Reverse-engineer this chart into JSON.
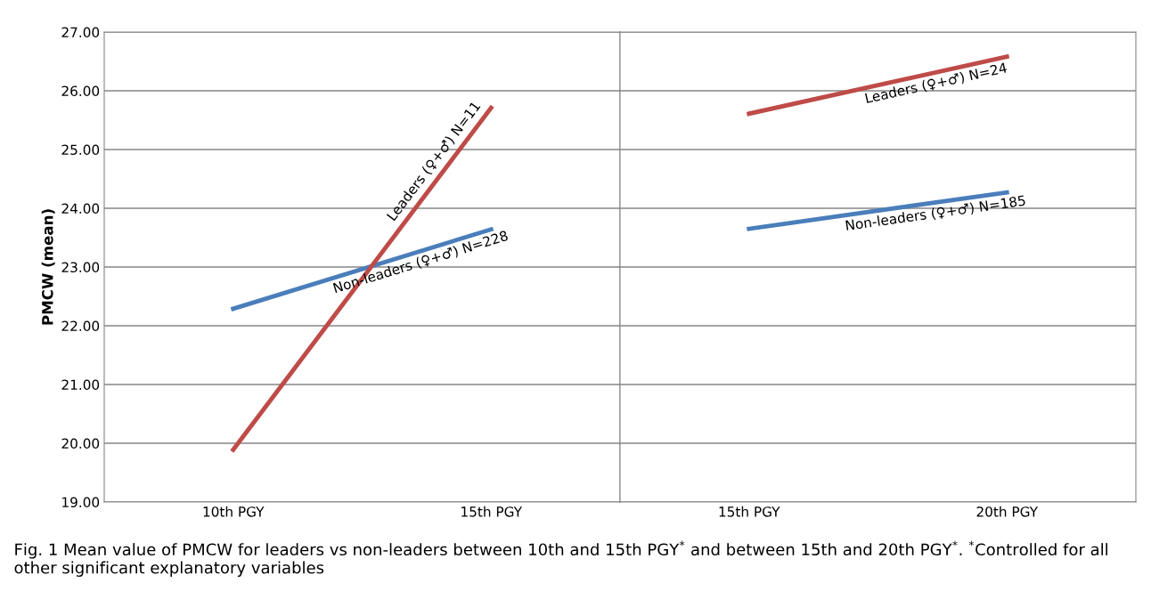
{
  "chart_data": [
    {
      "type": "line",
      "ylabel": "PMCW (mean)",
      "categories": [
        "10th PGY",
        "15th PGY"
      ],
      "series": [
        {
          "name": "Non-leaders (♀+♂) N=228",
          "color": "#4a7ebb",
          "values": [
            22.29,
            23.64
          ]
        },
        {
          "name": "Leaders (♀+♂) N=11",
          "color": "#be4b48",
          "values": [
            19.89,
            25.71
          ]
        }
      ],
      "ylim": [
        19,
        27
      ],
      "yticks": [
        {
          "value": 19,
          "label": "19.00"
        },
        {
          "value": 20,
          "label": "20.00"
        },
        {
          "value": 21,
          "label": "21.00"
        },
        {
          "value": 22,
          "label": "22.00"
        },
        {
          "value": 23,
          "label": "23.00"
        },
        {
          "value": 24,
          "label": "24.00"
        },
        {
          "value": 25,
          "label": "25.00"
        },
        {
          "value": 26,
          "label": "26.00"
        },
        {
          "value": 27,
          "label": "27.00"
        }
      ],
      "grid": "y",
      "legend": false,
      "marker": "none",
      "line_style": "solid",
      "annotations": [
        "Fig. 1 Mean value of PMCW for leaders vs non-leaders between 10th and 15th PGY$^{*}$ and between 15th and 20th PGY$^{*}$. $^{*}$Controlled for all other significant explanatory variables"
      ]
    },
    {
      "type": "line",
      "categories": [
        "15th PGY",
        "20th PGY"
      ],
      "series": [
        {
          "name": "Leaders (♀+♂) N=24",
          "color": "#be4b48",
          "values": [
            25.61,
            26.58
          ]
        },
        {
          "name": "Non-leaders (♀+♂) N=185",
          "color": "#4a7ebb",
          "values": [
            23.65,
            24.27
          ]
        }
      ],
      "ylim": [
        19,
        27
      ],
      "yticks": [
        {
          "value": 19,
          "label": null
        },
        {
          "value": 20,
          "label": null
        },
        {
          "value": 21,
          "label": null
        },
        {
          "value": 22,
          "label": null
        },
        {
          "value": 23,
          "label": null
        },
        {
          "value": 24,
          "label": null
        },
        {
          "value": 25,
          "label": null
        },
        {
          "value": 26,
          "label": null
        },
        {
          "value": 27,
          "label": null
        }
      ],
      "tick_labels": "x",
      "grid": "y",
      "legend": false,
      "marker": "none",
      "line_style": "solid"
    }
  ]
}
